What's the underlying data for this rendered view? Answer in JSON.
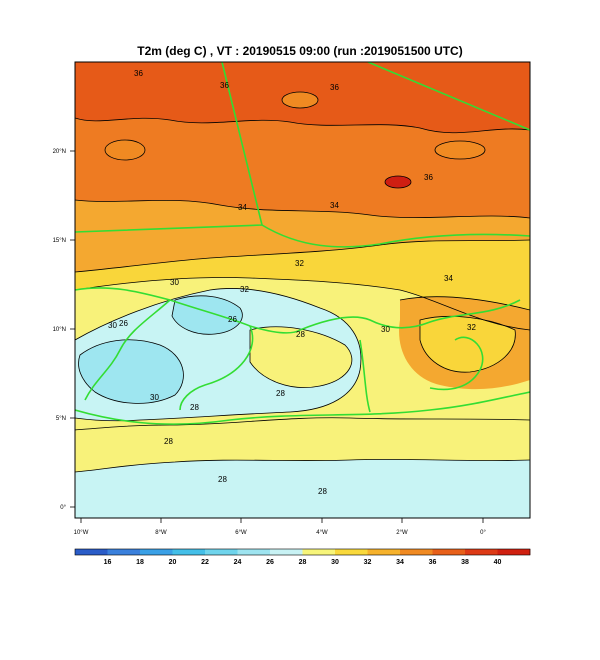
{
  "title": "T2m (deg C) ,  VT : 20190515  09:00 (run :2019051500 UTC)",
  "lat_ticks": [
    "20°N",
    "15°N",
    "10°N",
    "5°N",
    "0°"
  ],
  "lon_ticks": [
    "10°W",
    "8°W",
    "6°W",
    "4°W",
    "2°W",
    "0°"
  ],
  "colorbar": {
    "ticks": [
      "16",
      "18",
      "20",
      "22",
      "24",
      "26",
      "28",
      "30",
      "32",
      "34",
      "36",
      "38",
      "40"
    ],
    "colors": [
      "#2a5cc8",
      "#3a80dc",
      "#3aa0e6",
      "#44bfe8",
      "#6fd4ec",
      "#9ee4f0",
      "#c8f2f4",
      "#f7f57a",
      "#f9d93c",
      "#f6b22c",
      "#f08a22",
      "#e8601a",
      "#dd3a16",
      "#d02010"
    ]
  },
  "contour_labels": [
    "36",
    "36",
    "36",
    "34",
    "34",
    "32",
    "32",
    "30",
    "30",
    "30",
    "28",
    "28",
    "28",
    "28",
    "26",
    "26",
    "34",
    "32",
    "30",
    "36",
    "28",
    "28"
  ],
  "colors": {
    "band_28_30": "#c8f4f4",
    "band_26_28": "#9ee6f0",
    "band_30_32": "#f8f27a",
    "band_32_34": "#f9d63a",
    "band_34_36": "#f4a830",
    "band_36_38": "#ee7b22",
    "band_38_40": "#e65a18",
    "band_40": "#cf1e12",
    "border": "#33dd33"
  }
}
